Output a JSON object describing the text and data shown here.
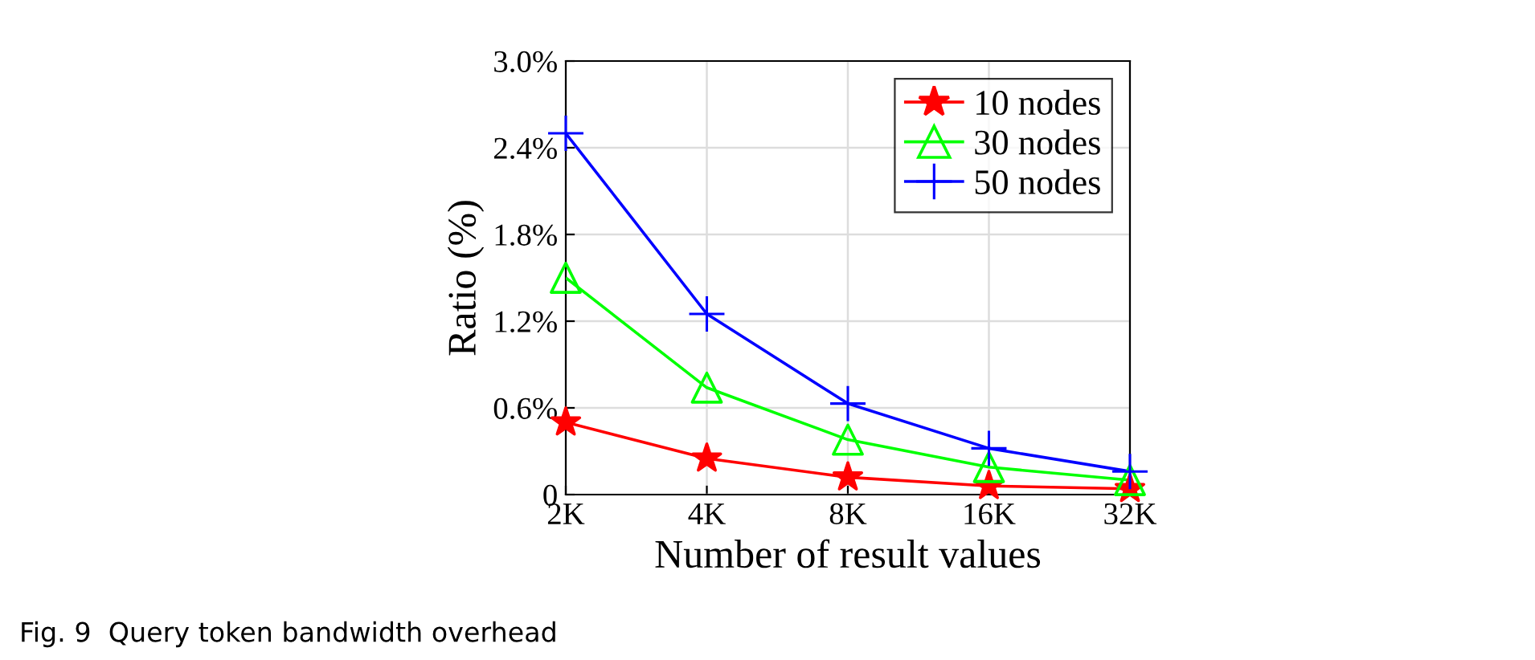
{
  "chart_data": {
    "type": "line",
    "xlabel": "Number of result values",
    "ylabel": "Ratio (%)",
    "categories": [
      "2K",
      "4K",
      "8K",
      "16K",
      "32K"
    ],
    "series": [
      {
        "name": "10 nodes",
        "color": "#ff0000",
        "marker": "star",
        "values": [
          0.5,
          0.25,
          0.12,
          0.06,
          0.04
        ]
      },
      {
        "name": "30 nodes",
        "color": "#00ff00",
        "marker": "triangle",
        "values": [
          1.5,
          0.74,
          0.38,
          0.19,
          0.1
        ]
      },
      {
        "name": "50 nodes",
        "color": "#0000ff",
        "marker": "cross",
        "values": [
          2.5,
          1.25,
          0.63,
          0.32,
          0.16
        ]
      }
    ],
    "ylim": [
      0,
      3.0
    ],
    "yticks": [
      0,
      {
        "value": 0.6,
        "label": "0.6%"
      },
      {
        "value": 1.2,
        "label": "1.2%"
      },
      {
        "value": 1.8,
        "label": "1.8%"
      },
      {
        "value": 2.4,
        "label": "2.4%"
      },
      {
        "value": 3.0,
        "label": "3.0%"
      }
    ],
    "grid": true,
    "legend": "top right",
    "line_style": "solid",
    "annotations": [
      "Fig. 9  Query token bandwidth overhead"
    ]
  }
}
